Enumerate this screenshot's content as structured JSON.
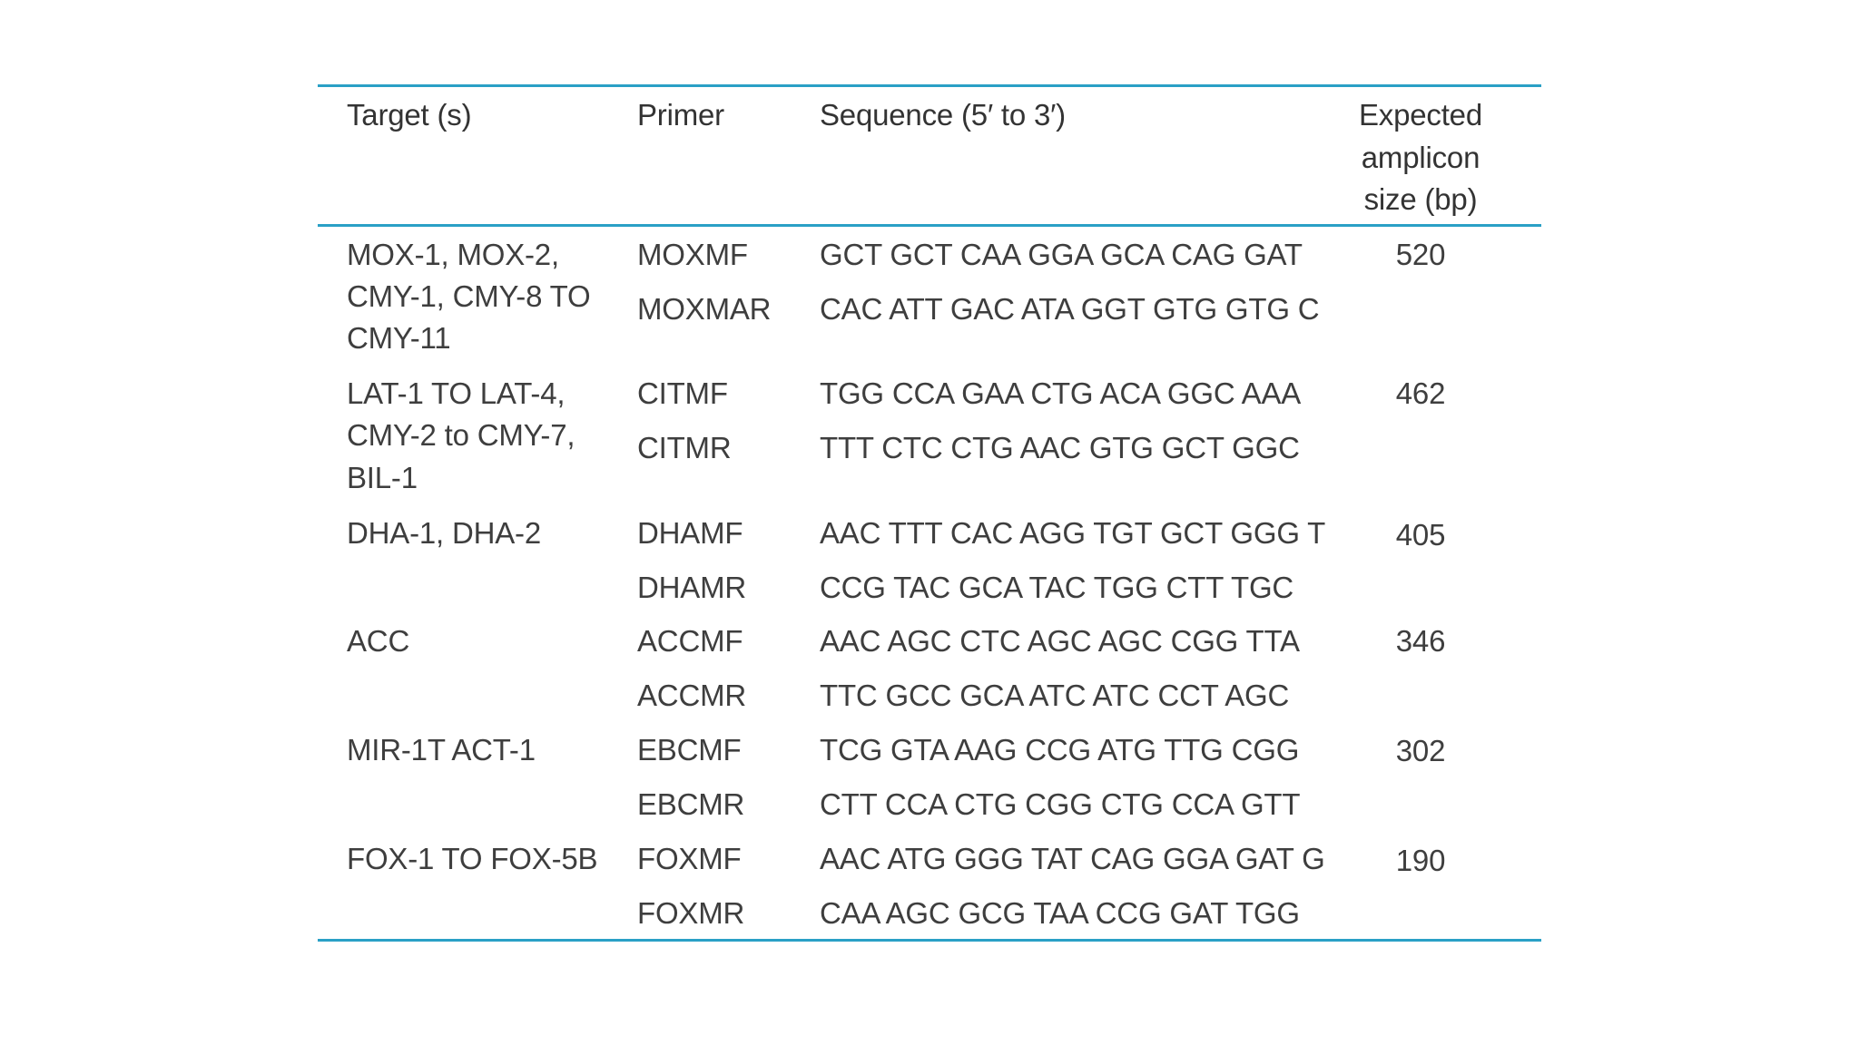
{
  "table": {
    "headers": {
      "target": "Target (s)",
      "primer": "Primer",
      "sequence": "Sequence (5′ to 3′)",
      "size_line1": "Expected",
      "size_line2": "amplicon",
      "size_line3": "size (bp)"
    },
    "groups": [
      {
        "target_lines": [
          "MOX-1, MOX-2,",
          "CMY-1, CMY-8 TO",
          "CMY-11"
        ],
        "size": "520",
        "rows": [
          {
            "primer": "MOXMF",
            "sequence": "GCT GCT CAA GGA GCA CAG GAT"
          },
          {
            "primer": "MOXMAR",
            "sequence": "CAC ATT GAC ATA GGT GTG GTG C"
          }
        ]
      },
      {
        "target_lines": [
          "LAT-1 TO LAT-4,",
          "CMY-2 to CMY-7,",
          "BIL-1"
        ],
        "size": "462",
        "rows": [
          {
            "primer": "CITMF",
            "sequence": "TGG CCA GAA CTG ACA GGC AAA"
          },
          {
            "primer": "CITMR",
            "sequence": "TTT CTC CTG AAC GTG GCT GGC"
          }
        ]
      },
      {
        "target_lines": [
          "DHA-1, DHA-2"
        ],
        "size": "405",
        "rows": [
          {
            "primer": "DHAMF",
            "sequence": "AAC TTT CAC AGG TGT GCT GGG T"
          },
          {
            "primer": "DHAMR",
            "sequence": "CCG TAC GCA TAC TGG CTT TGC"
          }
        ]
      },
      {
        "target_lines": [
          "ACC"
        ],
        "size": "346",
        "rows": [
          {
            "primer": "ACCMF",
            "sequence": "AAC AGC CTC AGC AGC CGG TTA"
          },
          {
            "primer": "ACCMR",
            "sequence": "TTC GCC GCA ATC ATC CCT AGC"
          }
        ]
      },
      {
        "target_lines": [
          "MIR-1T ACT-1"
        ],
        "size": "302",
        "rows": [
          {
            "primer": "EBCMF",
            "sequence": "TCG GTA AAG CCG ATG TTG CGG"
          },
          {
            "primer": "EBCMR",
            "sequence": "CTT CCA CTG CGG CTG CCA GTT"
          }
        ]
      },
      {
        "target_lines": [
          "FOX-1 TO FOX-5B"
        ],
        "size": "190",
        "rows": [
          {
            "primer": "FOXMF",
            "sequence": "AAC ATG GGG TAT CAG GGA GAT G"
          },
          {
            "primer": "FOXMR",
            "sequence": "CAA AGC GCG TAA CCG GAT TGG"
          }
        ]
      }
    ]
  }
}
